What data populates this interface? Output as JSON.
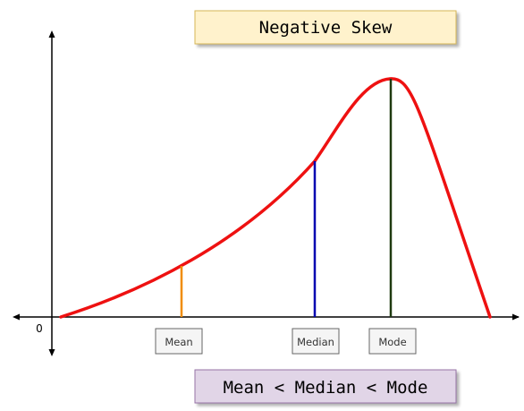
{
  "title": "Negative Skew",
  "origin_label": "0",
  "markers": {
    "mean": {
      "label": "Mean",
      "color": "#f08c00"
    },
    "median": {
      "label": "Median",
      "color": "#0000b0"
    },
    "mode": {
      "label": "Mode",
      "color": "#1f3a10"
    }
  },
  "relation": "Mean < Median < Mode",
  "colors": {
    "curve": "#ee1111",
    "axis": "#000000",
    "title_box_fill": "#fff2cc",
    "title_box_stroke": "#d6b656",
    "relation_box_fill": "#e1d5e7",
    "relation_box_stroke": "#9673a6",
    "label_box_fill": "#f5f5f5",
    "label_box_stroke": "#666666"
  }
}
